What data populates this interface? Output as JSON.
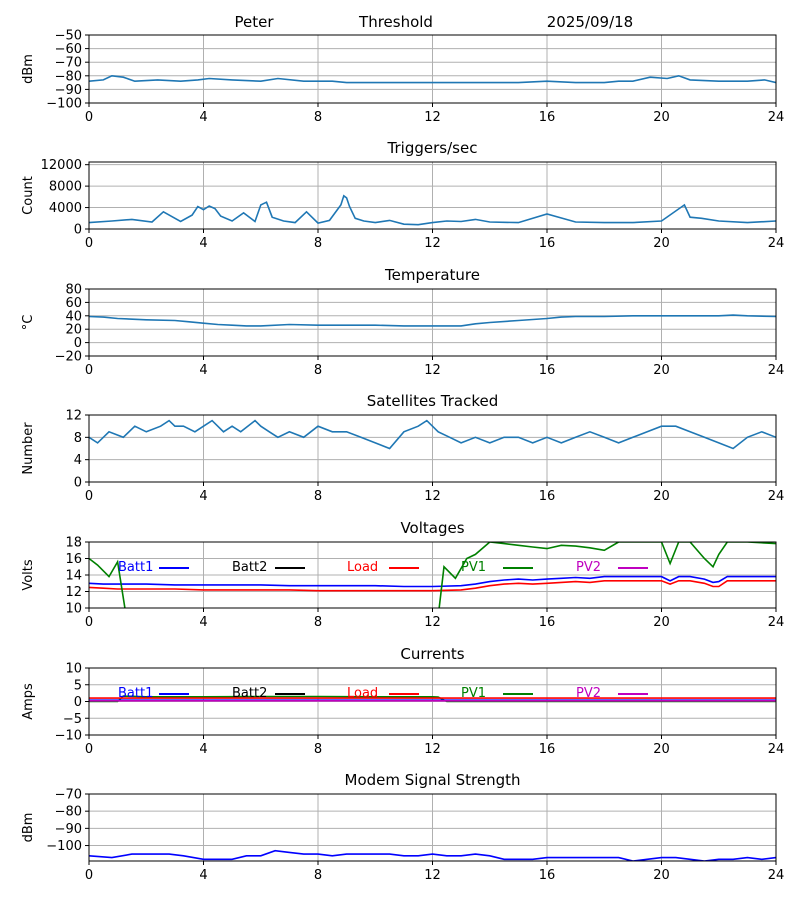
{
  "header": {
    "name": "Peter",
    "title": "Threshold",
    "date": "2025/09/18"
  },
  "x_ticks": [
    "0",
    "4",
    "8",
    "12",
    "16",
    "20",
    "24"
  ],
  "chart_data": [
    {
      "type": "line",
      "title": "",
      "ylabel": "dBm",
      "xlim": [
        0,
        24
      ],
      "ylim": [
        -100,
        -50
      ],
      "yticks": [
        "−100",
        "−90",
        "−80",
        "−70",
        "−60",
        "−50"
      ],
      "grid": true,
      "series": [
        {
          "color": "#1f77b4",
          "x": [
            0,
            0.5,
            0.8,
            1.2,
            1.6,
            2.4,
            3.2,
            3.8,
            4.2,
            5.0,
            6.0,
            6.6,
            7.5,
            8.5,
            9.0,
            10,
            11,
            12,
            13,
            14,
            15,
            16,
            17,
            18,
            18.5,
            19,
            19.6,
            20.2,
            20.6,
            21,
            22,
            23,
            23.6,
            24
          ],
          "y": [
            -84,
            -83,
            -80,
            -81,
            -84,
            -83,
            -84,
            -83,
            -82,
            -83,
            -84,
            -82,
            -84,
            -84,
            -85,
            -85,
            -85,
            -85,
            -85,
            -85,
            -85,
            -84,
            -85,
            -85,
            -84,
            -84,
            -81,
            -82,
            -80,
            -83,
            -84,
            -84,
            -83,
            -85
          ]
        }
      ]
    },
    {
      "type": "line",
      "title": "Triggers/sec",
      "ylabel": "Count",
      "xlim": [
        0,
        24
      ],
      "ylim": [
        0,
        12500
      ],
      "yticks": [
        "0",
        "4000",
        "8000",
        "12000"
      ],
      "grid": true,
      "series": [
        {
          "color": "#1f77b4",
          "x": [
            0,
            0.8,
            1.5,
            2.2,
            2.6,
            3.2,
            3.6,
            3.8,
            4.0,
            4.2,
            4.4,
            4.6,
            5.0,
            5.4,
            5.8,
            6.0,
            6.2,
            6.4,
            6.8,
            7.2,
            7.6,
            8.0,
            8.4,
            8.8,
            8.9,
            9.0,
            9.1,
            9.3,
            9.6,
            10,
            10.5,
            11,
            11.5,
            12,
            12.5,
            13,
            13.5,
            14,
            15,
            16,
            17,
            18,
            19,
            20,
            20.8,
            21,
            21.4,
            22,
            23,
            24
          ],
          "y": [
            1200,
            1500,
            1800,
            1300,
            3200,
            1400,
            2600,
            4200,
            3600,
            4300,
            3800,
            2400,
            1500,
            3000,
            1400,
            4500,
            5000,
            2200,
            1500,
            1200,
            3200,
            1100,
            1600,
            4500,
            6200,
            5800,
            4200,
            2000,
            1500,
            1200,
            1600,
            900,
            800,
            1200,
            1500,
            1400,
            1800,
            1300,
            1200,
            2800,
            1300,
            1200,
            1200,
            1500,
            4500,
            2200,
            2000,
            1500,
            1200,
            1500
          ]
        }
      ]
    },
    {
      "type": "line",
      "title": "Temperature",
      "ylabel": "°C",
      "xlim": [
        0,
        24
      ],
      "ylim": [
        -20,
        80
      ],
      "yticks": [
        "−20",
        "0",
        "20",
        "40",
        "60",
        "80"
      ],
      "grid": true,
      "series": [
        {
          "color": "#1f77b4",
          "x": [
            0,
            0.5,
            1,
            2,
            3,
            3.5,
            4,
            4.5,
            5,
            5.5,
            6,
            7,
            8,
            9,
            10,
            11,
            12,
            13,
            13.5,
            14,
            15,
            16,
            16.5,
            17,
            18,
            19,
            20,
            21,
            22,
            22.5,
            23,
            24
          ],
          "y": [
            39,
            38,
            36,
            34,
            33,
            31,
            29,
            27,
            26,
            25,
            25,
            27,
            26,
            26,
            26,
            25,
            25,
            25,
            28,
            30,
            33,
            36,
            38,
            39,
            39,
            40,
            40,
            40,
            40,
            41,
            40,
            39
          ]
        }
      ]
    },
    {
      "type": "line",
      "title": "Satellites Tracked",
      "ylabel": "Number",
      "xlim": [
        0,
        24
      ],
      "ylim": [
        0,
        12
      ],
      "yticks": [
        "0",
        "4",
        "8",
        "12"
      ],
      "grid": true,
      "series": [
        {
          "color": "#1f77b4",
          "x": [
            0,
            0.3,
            0.7,
            1.2,
            1.6,
            2.0,
            2.5,
            2.8,
            3.0,
            3.3,
            3.7,
            4.0,
            4.3,
            4.7,
            5.0,
            5.3,
            5.8,
            6.0,
            6.3,
            6.6,
            7.0,
            7.5,
            8.0,
            8.5,
            9.0,
            9.5,
            10,
            10.5,
            11,
            11.5,
            11.8,
            12.2,
            12.6,
            13,
            13.5,
            14,
            14.5,
            15,
            15.5,
            16,
            16.5,
            17,
            17.5,
            18,
            18.5,
            19,
            19.5,
            20,
            20.5,
            21,
            21.5,
            22,
            22.5,
            23,
            23.5,
            24
          ],
          "y": [
            8,
            7,
            9,
            8,
            10,
            9,
            10,
            11,
            10,
            10,
            9,
            10,
            11,
            9,
            10,
            9,
            11,
            10,
            9,
            8,
            9,
            8,
            10,
            9,
            9,
            8,
            7,
            6,
            9,
            10,
            11,
            9,
            8,
            7,
            8,
            7,
            8,
            8,
            7,
            8,
            7,
            8,
            9,
            8,
            7,
            8,
            9,
            10,
            10,
            9,
            8,
            7,
            6,
            8,
            9,
            8
          ]
        }
      ]
    },
    {
      "type": "line",
      "title": "Voltages",
      "ylabel": "Volts",
      "xlim": [
        0,
        24
      ],
      "ylim": [
        10,
        18
      ],
      "yticks": [
        "10",
        "12",
        "14",
        "16",
        "18"
      ],
      "grid": true,
      "legend": [
        "Batt1",
        "Batt2",
        "Load",
        "PV1",
        "PV2"
      ],
      "series": [
        {
          "name": "Batt1",
          "color": "#0000ff",
          "x": [
            0,
            0.5,
            1,
            2,
            3,
            4,
            5,
            6,
            7,
            8,
            9,
            10,
            11,
            12,
            13,
            13.5,
            14,
            14.5,
            15,
            15.5,
            16,
            16.5,
            17,
            17.5,
            18,
            19,
            19.5,
            20,
            20.3,
            20.6,
            21,
            21.5,
            21.8,
            22,
            22.3,
            23,
            24
          ],
          "y": [
            13,
            12.9,
            12.9,
            12.9,
            12.8,
            12.8,
            12.8,
            12.8,
            12.7,
            12.7,
            12.7,
            12.7,
            12.6,
            12.6,
            12.7,
            12.9,
            13.2,
            13.4,
            13.5,
            13.4,
            13.5,
            13.6,
            13.7,
            13.6,
            13.8,
            13.8,
            13.8,
            13.8,
            13.3,
            13.8,
            13.8,
            13.5,
            13.1,
            13.2,
            13.8,
            13.8,
            13.8
          ]
        },
        {
          "name": "Load",
          "color": "#ff0000",
          "x": [
            0,
            0.5,
            1,
            2,
            3,
            4,
            5,
            6,
            7,
            8,
            9,
            10,
            11,
            12,
            13,
            13.5,
            14,
            14.5,
            15,
            15.5,
            16,
            16.5,
            17,
            17.5,
            18,
            19,
            19.5,
            20,
            20.3,
            20.6,
            21,
            21.5,
            21.8,
            22,
            22.3,
            23,
            24
          ],
          "y": [
            12.5,
            12.4,
            12.3,
            12.3,
            12.3,
            12.2,
            12.2,
            12.2,
            12.2,
            12.1,
            12.1,
            12.1,
            12.1,
            12.1,
            12.2,
            12.4,
            12.7,
            12.9,
            13,
            12.9,
            13,
            13.1,
            13.2,
            13.1,
            13.3,
            13.3,
            13.3,
            13.3,
            12.9,
            13.3,
            13.3,
            13,
            12.6,
            12.6,
            13.3,
            13.3,
            13.3
          ]
        },
        {
          "name": "PV1",
          "color": "#008000",
          "x": [
            0,
            0.3,
            0.7,
            1.0,
            1.3,
            12.2,
            12.4,
            12.8,
            13.2,
            13.5,
            14,
            14.5,
            15,
            15.5,
            16,
            16.5,
            17,
            17.5,
            18,
            18.5,
            19,
            19.5,
            20,
            20.3,
            20.6,
            21,
            21.5,
            21.8,
            22,
            22.3,
            23,
            24
          ],
          "y": [
            16,
            15.2,
            13.8,
            15.6,
            9,
            9,
            15,
            13.6,
            16,
            16.5,
            18,
            17.8,
            17.6,
            17.4,
            17.2,
            17.6,
            17.5,
            17.3,
            17,
            18,
            18,
            18,
            18,
            15.4,
            18,
            18,
            16,
            15,
            16.5,
            18,
            18,
            17.8
          ]
        }
      ]
    },
    {
      "type": "line",
      "title": "Currents",
      "ylabel": "Amps",
      "xlim": [
        0,
        24
      ],
      "ylim": [
        -10,
        10
      ],
      "yticks": [
        "−10",
        "−5",
        "0",
        "5",
        "10"
      ],
      "grid": true,
      "legend": [
        "Batt1",
        "Batt2",
        "Load",
        "PV1",
        "PV2"
      ],
      "series": [
        {
          "name": "PV1",
          "color": "#008000",
          "x": [
            0,
            1,
            1.2,
            2,
            4,
            6,
            8,
            10,
            12,
            12.2,
            12.5,
            24
          ],
          "y": [
            0,
            0,
            1.6,
            1.4,
            1.4,
            1.5,
            1.5,
            1.4,
            1.4,
            1.3,
            0,
            0
          ]
        },
        {
          "name": "Load",
          "color": "#ff0000",
          "x": [
            0,
            4,
            8,
            12,
            16,
            20,
            24
          ],
          "y": [
            1.0,
            1.0,
            1.0,
            1.0,
            1.0,
            1.0,
            1.0
          ]
        },
        {
          "name": "Batt1",
          "color": "#0000ff",
          "x": [
            0,
            24
          ],
          "y": [
            0.4,
            0.4
          ]
        },
        {
          "name": "PV2",
          "color": "#bf00bf",
          "x": [
            0,
            24
          ],
          "y": [
            0.2,
            0.2
          ]
        }
      ]
    },
    {
      "type": "line",
      "title": "Modem Signal Strength",
      "ylabel": "dBm",
      "xlim": [
        0,
        24
      ],
      "ylim": [
        -109,
        -70
      ],
      "yticks": [
        "−100",
        "−90",
        "−80",
        "−70"
      ],
      "grid": true,
      "series": [
        {
          "color": "#0000ff",
          "x": [
            0,
            0.8,
            1.5,
            2,
            2.8,
            3.3,
            4,
            4.5,
            5,
            5.5,
            6,
            6.5,
            7,
            7.5,
            8,
            8.5,
            9,
            9.5,
            10,
            10.5,
            11,
            11.5,
            12,
            12.5,
            13,
            13.5,
            14,
            14.5,
            15,
            15.5,
            16,
            16.5,
            17,
            17.5,
            18,
            18.5,
            19,
            19.5,
            20,
            20.5,
            21,
            21.5,
            22,
            22.5,
            23,
            23.5,
            24
          ],
          "y": [
            -106,
            -107,
            -105,
            -105,
            -105,
            -106,
            -108,
            -108,
            -108,
            -106,
            -106,
            -103,
            -104,
            -105,
            -105,
            -106,
            -105,
            -105,
            -105,
            -105,
            -106,
            -106,
            -105,
            -106,
            -106,
            -105,
            -106,
            -108,
            -108,
            -108,
            -107,
            -107,
            -107,
            -107,
            -107,
            -107,
            -109,
            -108,
            -107,
            -107,
            -108,
            -109,
            -108,
            -108,
            -107,
            -108,
            -107
          ]
        }
      ]
    }
  ]
}
